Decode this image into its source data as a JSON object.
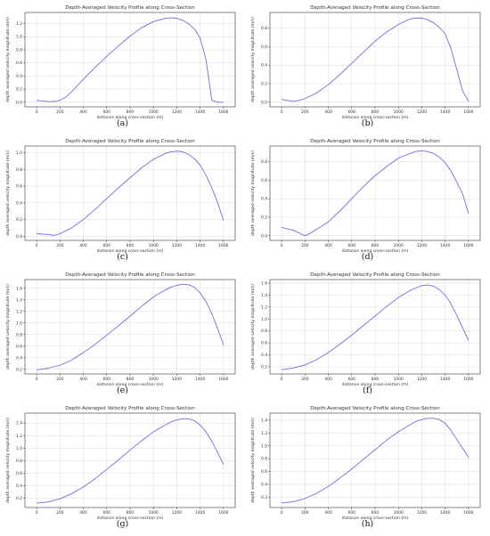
{
  "chart_data": [
    {
      "type": "line",
      "caption": "(a)",
      "title": "Depth-Averaged Velocity Profile along Cross-Section",
      "xlabel": "distance along cross-section (m)",
      "ylabel": "depth averaged velocity magnitude (m/s)",
      "xlim": [
        -100,
        1700
      ],
      "ylim": [
        -0.07,
        1.37
      ],
      "xticks": [
        0,
        200,
        400,
        600,
        800,
        1000,
        1200,
        1400,
        1600
      ],
      "yticks": [
        0.0,
        0.2,
        0.4,
        0.6,
        0.8,
        1.0,
        1.2
      ],
      "ytick_labels": [
        "0.0",
        "0.2",
        "0.4",
        "0.6",
        "0.8",
        "1.0",
        "1.2"
      ],
      "grid": true,
      "color": "#6f6fe0",
      "series": [
        {
          "x": [
            0,
            100,
            150,
            200,
            250,
            300,
            400,
            500,
            600,
            700,
            800,
            900,
            1000,
            1100,
            1150,
            1200,
            1250,
            1300,
            1350,
            1400,
            1450,
            1500,
            1550,
            1600
          ],
          "values": [
            0.03,
            0.01,
            0.01,
            0.03,
            0.08,
            0.16,
            0.35,
            0.53,
            0.7,
            0.86,
            1.01,
            1.14,
            1.23,
            1.28,
            1.29,
            1.28,
            1.25,
            1.2,
            1.12,
            0.98,
            0.65,
            0.03,
            0.0,
            0.0
          ]
        }
      ]
    },
    {
      "type": "line",
      "caption": "(b)",
      "title": "Depth-Averaged Velocity Profile along Cross-Section",
      "xlabel": "distance along cross-section (m)",
      "ylabel": "depth averaged velocity magnitude (m/s)",
      "xlim": [
        -100,
        1700
      ],
      "ylim": [
        -0.05,
        0.97
      ],
      "xticks": [
        0,
        200,
        400,
        600,
        800,
        1000,
        1200,
        1400,
        1600
      ],
      "yticks": [
        0.0,
        0.2,
        0.4,
        0.6,
        0.8
      ],
      "ytick_labels": [
        "0.0",
        "0.2",
        "0.4",
        "0.6",
        "0.8"
      ],
      "grid": true,
      "color": "#6f6fe0",
      "series": [
        {
          "x": [
            0,
            100,
            150,
            200,
            300,
            400,
            500,
            600,
            700,
            800,
            900,
            1000,
            1100,
            1150,
            1200,
            1250,
            1300,
            1350,
            1400,
            1450,
            1500,
            1550,
            1600
          ],
          "values": [
            0.03,
            0.01,
            0.02,
            0.04,
            0.1,
            0.19,
            0.3,
            0.42,
            0.54,
            0.66,
            0.76,
            0.84,
            0.9,
            0.91,
            0.91,
            0.89,
            0.86,
            0.81,
            0.74,
            0.58,
            0.35,
            0.12,
            0.01
          ]
        }
      ]
    },
    {
      "type": "line",
      "caption": "(c)",
      "title": "Depth-Averaged Velocity Profile along Cross-Section",
      "xlabel": "distance along cross-section (m)",
      "ylabel": "depth averaged velocity magnitude (m/s)",
      "xlim": [
        -100,
        1700
      ],
      "ylim": [
        -0.05,
        1.08
      ],
      "xticks": [
        0,
        200,
        400,
        600,
        800,
        1000,
        1200,
        1400,
        1600
      ],
      "yticks": [
        0.0,
        0.2,
        0.4,
        0.6,
        0.8,
        1.0
      ],
      "ytick_labels": [
        "0.0",
        "0.2",
        "0.4",
        "0.6",
        "0.8",
        "1.0"
      ],
      "grid": true,
      "color": "#6f6fe0",
      "series": [
        {
          "x": [
            0,
            100,
            150,
            200,
            300,
            400,
            500,
            600,
            700,
            800,
            900,
            1000,
            1100,
            1150,
            1200,
            1250,
            1300,
            1350,
            1400,
            1450,
            1500,
            1550,
            1600
          ],
          "values": [
            0.03,
            0.02,
            0.01,
            0.03,
            0.1,
            0.2,
            0.32,
            0.45,
            0.58,
            0.7,
            0.82,
            0.92,
            0.99,
            1.01,
            1.02,
            1.01,
            0.98,
            0.93,
            0.85,
            0.73,
            0.58,
            0.4,
            0.19
          ]
        }
      ]
    },
    {
      "type": "line",
      "caption": "(d)",
      "title": "Depth-Averaged Velocity Profile along Cross-Section",
      "xlabel": "distance along cross-section (m)",
      "ylabel": "depth averaged velocity magnitude (m/s)",
      "xlim": [
        -100,
        1700
      ],
      "ylim": [
        -0.05,
        0.97
      ],
      "xticks": [
        0,
        200,
        400,
        600,
        800,
        1000,
        1200,
        1400,
        1600
      ],
      "yticks": [
        0.0,
        0.2,
        0.4,
        0.6,
        0.8
      ],
      "ytick_labels": [
        "0.0",
        "0.2",
        "0.4",
        "0.6",
        "0.8"
      ],
      "grid": true,
      "color": "#6f6fe0",
      "series": [
        {
          "x": [
            0,
            100,
            150,
            200,
            250,
            300,
            400,
            500,
            600,
            700,
            800,
            900,
            1000,
            1100,
            1150,
            1200,
            1250,
            1300,
            1350,
            1400,
            1450,
            1500,
            1550,
            1600
          ],
          "values": [
            0.09,
            0.06,
            0.03,
            0.0,
            0.03,
            0.07,
            0.15,
            0.27,
            0.4,
            0.53,
            0.65,
            0.75,
            0.84,
            0.89,
            0.91,
            0.92,
            0.91,
            0.89,
            0.85,
            0.79,
            0.7,
            0.58,
            0.45,
            0.24
          ]
        }
      ]
    },
    {
      "type": "line",
      "caption": "(e)",
      "title": "Depth-Averaged Velocity Profile along Cross-Section",
      "xlabel": "distance along cross-section (m)",
      "ylabel": "depth averaged velocity magnitude (m/s)",
      "xlim": [
        -100,
        1700
      ],
      "ylim": [
        0.12,
        1.75
      ],
      "xticks": [
        0,
        200,
        400,
        600,
        800,
        1000,
        1200,
        1400,
        1600
      ],
      "yticks": [
        0.2,
        0.4,
        0.6,
        0.8,
        1.0,
        1.2,
        1.4,
        1.6
      ],
      "ytick_labels": [
        "0.2",
        "0.4",
        "0.6",
        "0.8",
        "1.0",
        "1.2",
        "1.4",
        "1.6"
      ],
      "grid": true,
      "color": "#6f6fe0",
      "series": [
        {
          "x": [
            0,
            100,
            200,
            300,
            400,
            500,
            600,
            700,
            800,
            900,
            1000,
            1100,
            1150,
            1200,
            1250,
            1300,
            1350,
            1400,
            1450,
            1500,
            1550,
            1600
          ],
          "values": [
            0.19,
            0.22,
            0.27,
            0.36,
            0.49,
            0.63,
            0.79,
            0.95,
            1.12,
            1.29,
            1.45,
            1.57,
            1.62,
            1.65,
            1.67,
            1.66,
            1.62,
            1.52,
            1.37,
            1.16,
            0.9,
            0.62
          ]
        }
      ]
    },
    {
      "type": "line",
      "caption": "(f)",
      "title": "Depth-Averaged Velocity Profile along Cross-Section",
      "xlabel": "distance along cross-section (m)",
      "ylabel": "depth averaged velocity magnitude (m/s)",
      "xlim": [
        -100,
        1700
      ],
      "ylim": [
        0.08,
        1.66
      ],
      "xticks": [
        0,
        200,
        400,
        600,
        800,
        1000,
        1200,
        1400,
        1600
      ],
      "yticks": [
        0.2,
        0.4,
        0.6,
        0.8,
        1.0,
        1.2,
        1.4,
        1.6
      ],
      "ytick_labels": [
        "0.2",
        "0.4",
        "0.6",
        "0.8",
        "1.0",
        "1.2",
        "1.4",
        "1.6"
      ],
      "grid": true,
      "color": "#6f6fe0",
      "series": [
        {
          "x": [
            0,
            100,
            200,
            300,
            400,
            500,
            600,
            700,
            800,
            900,
            1000,
            1100,
            1150,
            1200,
            1250,
            1300,
            1350,
            1400,
            1450,
            1500,
            1550,
            1600
          ],
          "values": [
            0.15,
            0.18,
            0.23,
            0.32,
            0.44,
            0.58,
            0.73,
            0.89,
            1.05,
            1.21,
            1.36,
            1.48,
            1.52,
            1.56,
            1.57,
            1.55,
            1.49,
            1.4,
            1.25,
            1.06,
            0.85,
            0.64
          ]
        }
      ]
    },
    {
      "type": "line",
      "caption": "(g)",
      "title": "Depth-Averaged Velocity Profile along Cross-Section",
      "xlabel": "distance along cross-section (m)",
      "ylabel": "depth averaged velocity magnitude (m/s)",
      "xlim": [
        -100,
        1700
      ],
      "ylim": [
        0.05,
        1.56
      ],
      "xticks": [
        0,
        200,
        400,
        600,
        800,
        1000,
        1200,
        1400,
        1600
      ],
      "yticks": [
        0.2,
        0.4,
        0.6,
        0.8,
        1.0,
        1.2,
        1.4
      ],
      "ytick_labels": [
        "0.2",
        "0.4",
        "0.6",
        "0.8",
        "1.0",
        "1.2",
        "1.4"
      ],
      "grid": true,
      "color": "#6f6fe0",
      "series": [
        {
          "x": [
            0,
            100,
            200,
            300,
            400,
            500,
            600,
            700,
            800,
            900,
            1000,
            1100,
            1150,
            1200,
            1250,
            1300,
            1350,
            1400,
            1450,
            1500,
            1550,
            1600
          ],
          "values": [
            0.12,
            0.14,
            0.19,
            0.27,
            0.38,
            0.51,
            0.66,
            0.81,
            0.97,
            1.12,
            1.26,
            1.37,
            1.42,
            1.45,
            1.47,
            1.47,
            1.44,
            1.37,
            1.26,
            1.11,
            0.93,
            0.74
          ]
        }
      ]
    },
    {
      "type": "line",
      "caption": "(h)",
      "title": "Depth-Averaged Velocity Profile along Cross-Section",
      "xlabel": "distance along cross-section (m)",
      "ylabel": "depth averaged velocity magnitude (m/s)",
      "xlim": [
        -100,
        1700
      ],
      "ylim": [
        0.04,
        1.51
      ],
      "xticks": [
        0,
        200,
        400,
        600,
        800,
        1000,
        1200,
        1400,
        1600
      ],
      "yticks": [
        0.2,
        0.4,
        0.6,
        0.8,
        1.0,
        1.2,
        1.4
      ],
      "ytick_labels": [
        "0.2",
        "0.4",
        "0.6",
        "0.8",
        "1.0",
        "1.2",
        "1.4"
      ],
      "grid": true,
      "color": "#6f6fe0",
      "series": [
        {
          "x": [
            0,
            100,
            200,
            300,
            400,
            500,
            600,
            700,
            800,
            900,
            1000,
            1100,
            1150,
            1200,
            1250,
            1300,
            1350,
            1400,
            1450,
            1500,
            1550,
            1600
          ],
          "values": [
            0.11,
            0.13,
            0.18,
            0.26,
            0.37,
            0.5,
            0.64,
            0.79,
            0.94,
            1.09,
            1.22,
            1.33,
            1.38,
            1.41,
            1.43,
            1.43,
            1.41,
            1.35,
            1.24,
            1.1,
            0.96,
            0.82
          ]
        }
      ]
    }
  ]
}
